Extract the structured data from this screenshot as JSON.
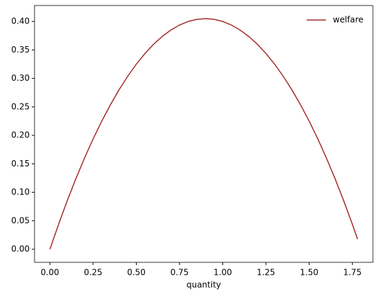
{
  "chart_data": {
    "type": "line",
    "x": [
      0,
      0.05,
      0.1,
      0.15,
      0.2,
      0.25,
      0.3,
      0.35,
      0.4,
      0.45,
      0.5,
      0.55,
      0.6,
      0.65,
      0.7,
      0.75,
      0.8,
      0.85,
      0.9,
      0.95,
      1.0,
      1.05,
      1.1,
      1.15,
      1.2,
      1.25,
      1.3,
      1.35,
      1.4,
      1.45,
      1.5,
      1.55,
      1.6,
      1.65,
      1.7,
      1.75,
      1.78
    ],
    "series": [
      {
        "name": "welfare",
        "color": "#a52a2a",
        "values": [
          0,
          0.04375,
          0.085,
          0.12375,
          0.16,
          0.19375,
          0.225,
          0.25375,
          0.28,
          0.30375,
          0.325,
          0.34375,
          0.36,
          0.37375,
          0.385,
          0.39375,
          0.4,
          0.40375,
          0.405,
          0.40375,
          0.4,
          0.39375,
          0.385,
          0.37375,
          0.36,
          0.34375,
          0.325,
          0.30375,
          0.28,
          0.25375,
          0.225,
          0.19375,
          0.16,
          0.12375,
          0.085,
          0.04375,
          0.0178
        ]
      }
    ],
    "xlabel": "quantity",
    "xlim": [
      -0.089,
      1.869
    ],
    "xticks": [
      {
        "value": 0,
        "label": "0.00"
      },
      {
        "value": 0.25,
        "label": "0.25"
      },
      {
        "value": 0.5,
        "label": "0.50"
      },
      {
        "value": 0.75,
        "label": "0.75"
      },
      {
        "value": 1.0,
        "label": "1.00"
      },
      {
        "value": 1.25,
        "label": "1.25"
      },
      {
        "value": 1.5,
        "label": "1.50"
      },
      {
        "value": 1.75,
        "label": "1.75"
      }
    ],
    "ylim": [
      -0.023,
      0.428
    ],
    "yticks": [
      {
        "value": 0,
        "label": "0.00"
      },
      {
        "value": 0.05,
        "label": "0.05"
      },
      {
        "value": 0.1,
        "label": "0.10"
      },
      {
        "value": 0.15,
        "label": "0.15"
      },
      {
        "value": 0.2,
        "label": "0.20"
      },
      {
        "value": 0.25,
        "label": "0.25"
      },
      {
        "value": 0.3,
        "label": "0.30"
      },
      {
        "value": 0.35,
        "label": "0.35"
      },
      {
        "value": 0.4,
        "label": "0.40"
      }
    ],
    "grid": false,
    "legend": "upper right"
  }
}
